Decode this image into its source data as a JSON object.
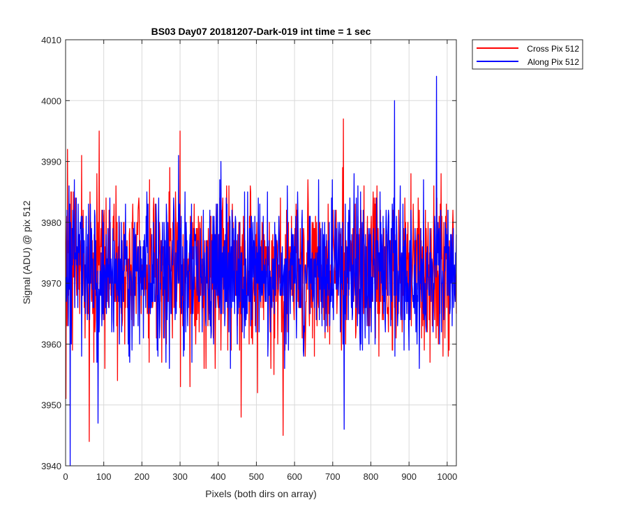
{
  "chart_data": {
    "type": "line",
    "title": "BS03 Day07 20181207-Dark-019 int time = 1 sec",
    "xlabel": "Pixels (both dirs on array)",
    "ylabel": "Signal (ADU) @ pix 512",
    "xlim": [
      0,
      1024
    ],
    "ylim": [
      3940,
      4010
    ],
    "x_ticks": [
      "0",
      "100",
      "200",
      "300",
      "400",
      "500",
      "600",
      "700",
      "800",
      "900",
      "1000"
    ],
    "y_ticks": [
      "3940",
      "3950",
      "3960",
      "3970",
      "3980",
      "3990",
      "4000",
      "4010"
    ],
    "grid": true,
    "legend_position": "outside top-right",
    "series": [
      {
        "name": "Cross Pix 512",
        "color": "#ff0000",
        "x_range": [
          1,
          1024
        ],
        "mean": 3972,
        "min": 3944,
        "max": 3997,
        "notable_points": [
          [
            1,
            3951
          ],
          [
            5,
            3992
          ],
          [
            62,
            3944
          ],
          [
            88,
            3995
          ],
          [
            300,
            3995
          ],
          [
            460,
            3948
          ],
          [
            570,
            3945
          ],
          [
            728,
            3997
          ]
        ]
      },
      {
        "name": "Along Pix 512",
        "color": "#0000ff",
        "x_range": [
          1,
          1024
        ],
        "mean": 3972,
        "min": 3940,
        "max": 4004,
        "notable_points": [
          [
            12,
            3940
          ],
          [
            85,
            3947
          ],
          [
            730,
            3946
          ],
          [
            862,
            4000
          ],
          [
            972,
            4004
          ]
        ]
      }
    ]
  }
}
